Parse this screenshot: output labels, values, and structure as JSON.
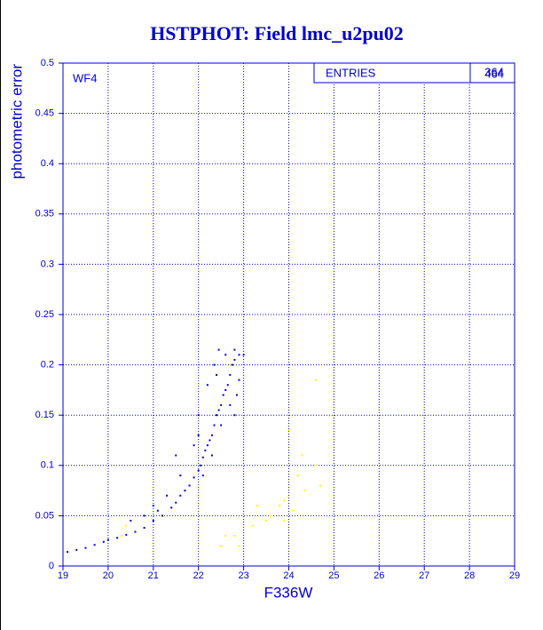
{
  "chart_data": {
    "type": "scatter",
    "title": "HSTPHOT: Field lmc_u2pu02",
    "xlabel": "F336W",
    "ylabel": "photometric error",
    "annotation": "WF4",
    "stats": {
      "label": "ENTRIES",
      "values": [
        364,
        464
      ]
    },
    "xlim": [
      19,
      29
    ],
    "ylim": [
      0,
      0.5
    ],
    "xticks": [
      19,
      20,
      21,
      22,
      23,
      24,
      25,
      26,
      27,
      28,
      29
    ],
    "yticks": [
      0,
      0.05,
      0.1,
      0.15,
      0.2,
      0.25,
      0.3,
      0.35,
      0.4,
      0.45,
      0.5
    ],
    "grid": true,
    "series": [
      {
        "color": "#0000cc",
        "x": [
          19.1,
          19.3,
          19.5,
          19.7,
          19.9,
          20.0,
          20.2,
          20.4,
          20.6,
          20.8,
          21.0,
          21.2,
          21.4,
          21.5,
          21.6,
          21.7,
          21.8,
          21.9,
          22.0,
          22.05,
          22.1,
          22.15,
          22.2,
          22.25,
          22.3,
          22.35,
          22.4,
          22.45,
          22.5,
          22.55,
          22.6,
          22.65,
          22.7,
          22.75,
          22.8,
          22.9,
          23.0,
          22.45,
          22.6,
          22.8,
          22.7,
          22.8,
          22.35,
          22.2,
          22.0,
          21.9,
          21.6,
          21.3,
          21.0,
          20.5,
          20.8,
          21.1,
          22.1,
          22.3,
          22.5,
          22.9,
          22.85,
          22.4,
          21.5,
          22.0
        ],
        "values": [
          0.014,
          0.016,
          0.018,
          0.021,
          0.024,
          0.026,
          0.028,
          0.031,
          0.034,
          0.038,
          0.045,
          0.05,
          0.058,
          0.063,
          0.07,
          0.075,
          0.08,
          0.088,
          0.095,
          0.1,
          0.108,
          0.115,
          0.12,
          0.125,
          0.13,
          0.14,
          0.15,
          0.155,
          0.16,
          0.17,
          0.175,
          0.18,
          0.19,
          0.2,
          0.205,
          0.21,
          0.21,
          0.215,
          0.21,
          0.215,
          0.16,
          0.15,
          0.2,
          0.18,
          0.15,
          0.12,
          0.09,
          0.07,
          0.06,
          0.045,
          0.05,
          0.055,
          0.09,
          0.11,
          0.14,
          0.185,
          0.17,
          0.19,
          0.11,
          0.13
        ]
      },
      {
        "color": "#ffff00",
        "x": [
          22.7,
          22.8,
          22.6,
          22.9,
          23.2,
          23.3,
          23.5,
          23.6,
          23.8,
          23.9,
          24.0,
          24.1,
          24.2,
          24.3,
          24.35,
          24.6,
          24.7,
          24.6,
          20.3,
          20.4,
          23.9,
          22.5
        ],
        "values": [
          0.2,
          0.03,
          0.03,
          0.02,
          0.04,
          0.06,
          0.045,
          0.05,
          0.06,
          0.065,
          0.135,
          0.055,
          0.09,
          0.11,
          0.075,
          0.185,
          0.08,
          0.1,
          0.03,
          0.04,
          0.045,
          0.02
        ]
      }
    ]
  }
}
